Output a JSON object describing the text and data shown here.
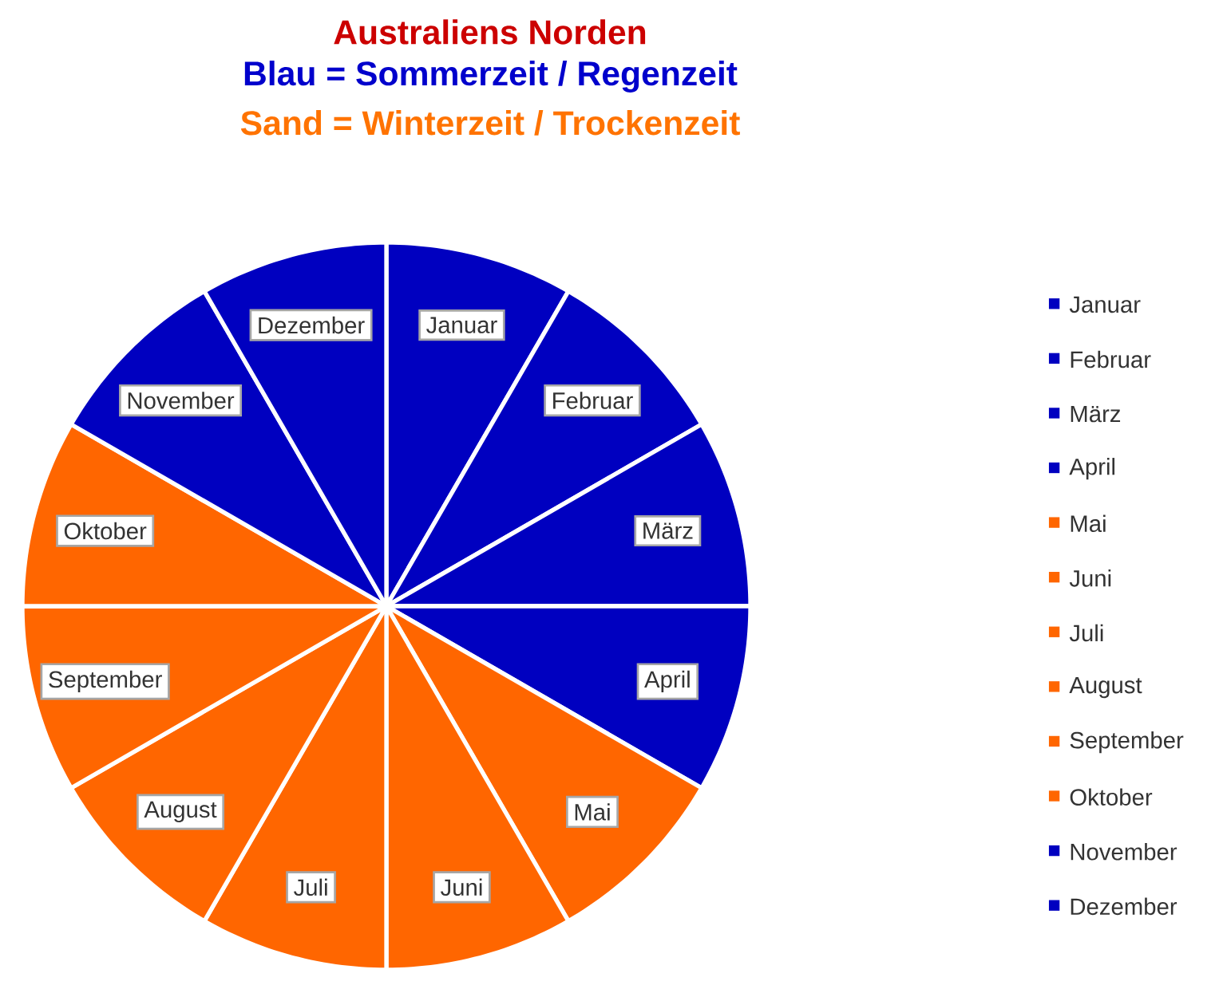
{
  "chart_data": {
    "type": "pie",
    "title": "Australiens Norden",
    "subtitle": "Blau = Sommerzeit / Regenzeit",
    "annotations": [
      "Sand = Winterzeit / Trockenzeit"
    ],
    "categories": [
      "Januar",
      "Februar",
      "März",
      "April",
      "Mai",
      "Juni",
      "Juli",
      "August",
      "September",
      "Oktober",
      "November",
      "Dezember"
    ],
    "values": [
      8.33,
      8.33,
      8.33,
      8.33,
      8.33,
      8.33,
      8.33,
      8.33,
      8.33,
      8.33,
      8.33,
      8.33
    ],
    "colors": [
      "#0000c0",
      "#0000c0",
      "#0000c0",
      "#0000c0",
      "#ff6600",
      "#ff6600",
      "#ff6600",
      "#ff6600",
      "#ff6600",
      "#ff6600",
      "#0000c0",
      "#0000c0"
    ],
    "legend": "right"
  }
}
